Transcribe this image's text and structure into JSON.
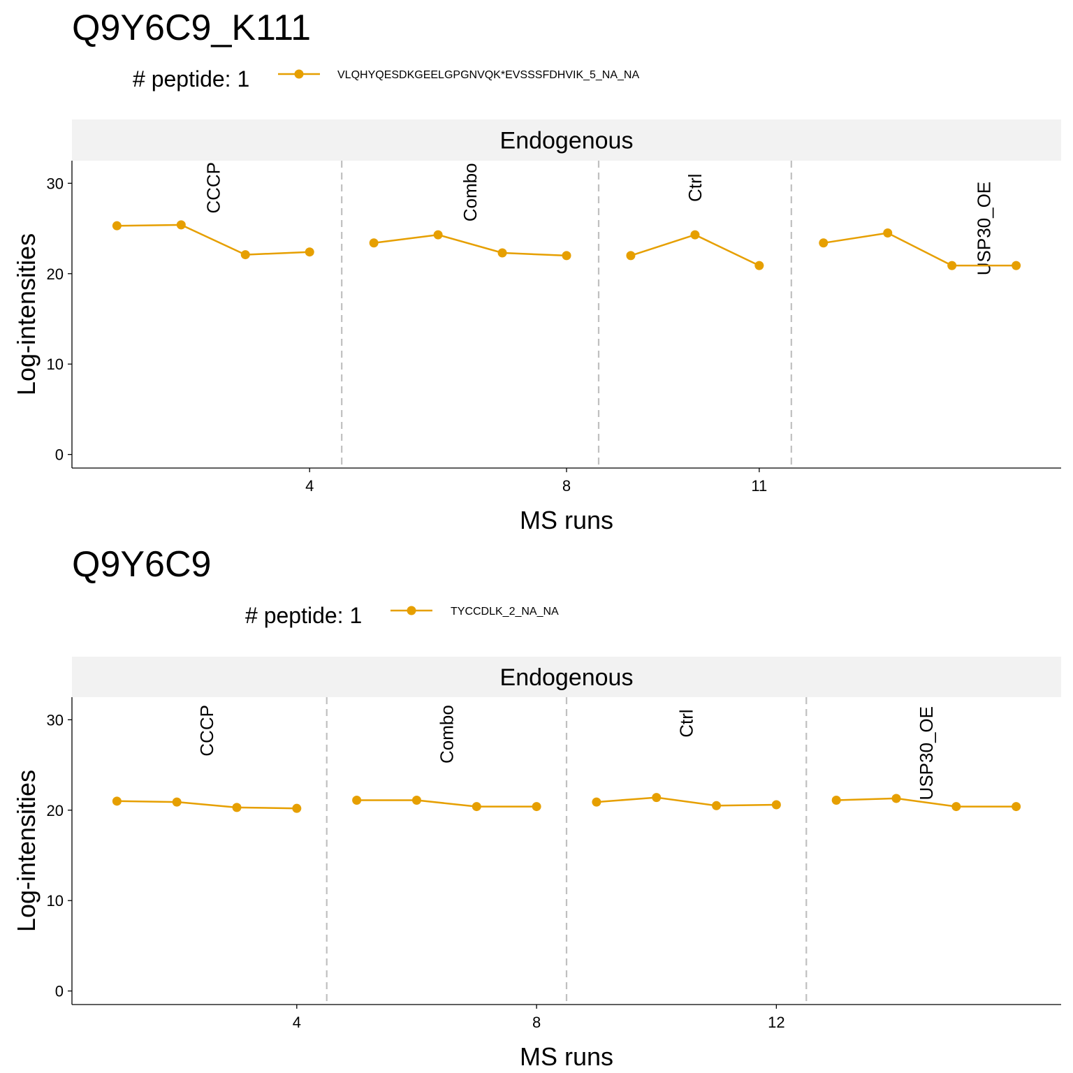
{
  "colors": {
    "series": "#E69F00",
    "strip_bg": "#F2F2F2",
    "separator": "#C0C0C0",
    "axis": "#000000",
    "background": "#FFFFFF"
  },
  "chart_data": [
    {
      "type": "line",
      "title": "Q9Y6C9_K111",
      "legend_title": "# peptide: 1",
      "legend_position": "top",
      "facet_label": "Endogenous",
      "xlabel": "MS runs",
      "ylabel": "Log-intensities",
      "xlim": [
        0.3,
        15.7
      ],
      "ylim": [
        -1.5,
        32.5
      ],
      "x_ticks": [
        4,
        8,
        11
      ],
      "y_ticks": [
        0,
        10,
        20,
        30
      ],
      "separators": [
        4.5,
        8.5,
        11.5
      ],
      "groups": [
        {
          "label": "CCCP",
          "x": 2.5,
          "y_center": 29.5
        },
        {
          "label": "Combo",
          "x": 6.5,
          "y_center": 29.0
        },
        {
          "label": "Ctrl",
          "x": 10.0,
          "y_center": 29.5
        },
        {
          "label": "USP30_OE",
          "x": 14.5,
          "y_center": 25.0
        }
      ],
      "series": [
        {
          "name": "VLQHYQESDKGEELGPGNVQK*EVSSSFDHVIK_5_NA_NA",
          "segments": [
            [
              {
                "x": 1,
                "y": 25.3
              },
              {
                "x": 2,
                "y": 25.4
              },
              {
                "x": 3,
                "y": 22.1
              },
              {
                "x": 4,
                "y": 22.4
              }
            ],
            [
              {
                "x": 5,
                "y": 23.4
              },
              {
                "x": 6,
                "y": 24.3
              },
              {
                "x": 7,
                "y": 22.3
              },
              {
                "x": 8,
                "y": 22.0
              }
            ],
            [
              {
                "x": 9,
                "y": 22.0
              },
              {
                "x": 10,
                "y": 24.3
              },
              {
                "x": 11,
                "y": 20.9
              }
            ],
            [
              {
                "x": 12,
                "y": 23.4
              },
              {
                "x": 13,
                "y": 24.5
              },
              {
                "x": 14,
                "y": 20.9
              },
              {
                "x": 15,
                "y": 20.9
              }
            ]
          ]
        }
      ]
    },
    {
      "type": "line",
      "title": "Q9Y6C9",
      "legend_title": "# peptide: 1",
      "legend_position": "top",
      "facet_label": "Endogenous",
      "xlabel": "MS runs",
      "ylabel": "Log-intensities",
      "xlim": [
        0.25,
        16.75
      ],
      "ylim": [
        -1.5,
        32.5
      ],
      "x_ticks": [
        4,
        8,
        12
      ],
      "y_ticks": [
        0,
        10,
        20,
        30
      ],
      "separators": [
        4.5,
        8.5,
        12.5
      ],
      "groups": [
        {
          "label": "CCCP",
          "x": 2.5,
          "y_center": 28.8
        },
        {
          "label": "Combo",
          "x": 6.5,
          "y_center": 28.4
        },
        {
          "label": "Ctrl",
          "x": 10.5,
          "y_center": 29.6
        },
        {
          "label": "USP30_OE",
          "x": 14.5,
          "y_center": 26.3
        }
      ],
      "series": [
        {
          "name": "TYCCDLK_2_NA_NA",
          "segments": [
            [
              {
                "x": 1,
                "y": 21.0
              },
              {
                "x": 2,
                "y": 20.9
              },
              {
                "x": 3,
                "y": 20.3
              },
              {
                "x": 4,
                "y": 20.2
              }
            ],
            [
              {
                "x": 5,
                "y": 21.1
              },
              {
                "x": 6,
                "y": 21.1
              },
              {
                "x": 7,
                "y": 20.4
              },
              {
                "x": 8,
                "y": 20.4
              }
            ],
            [
              {
                "x": 9,
                "y": 20.9
              },
              {
                "x": 10,
                "y": 21.4
              },
              {
                "x": 11,
                "y": 20.5
              },
              {
                "x": 12,
                "y": 20.6
              }
            ],
            [
              {
                "x": 13,
                "y": 21.1
              },
              {
                "x": 14,
                "y": 21.3
              },
              {
                "x": 15,
                "y": 20.4
              },
              {
                "x": 16,
                "y": 20.4
              }
            ]
          ]
        }
      ]
    }
  ]
}
